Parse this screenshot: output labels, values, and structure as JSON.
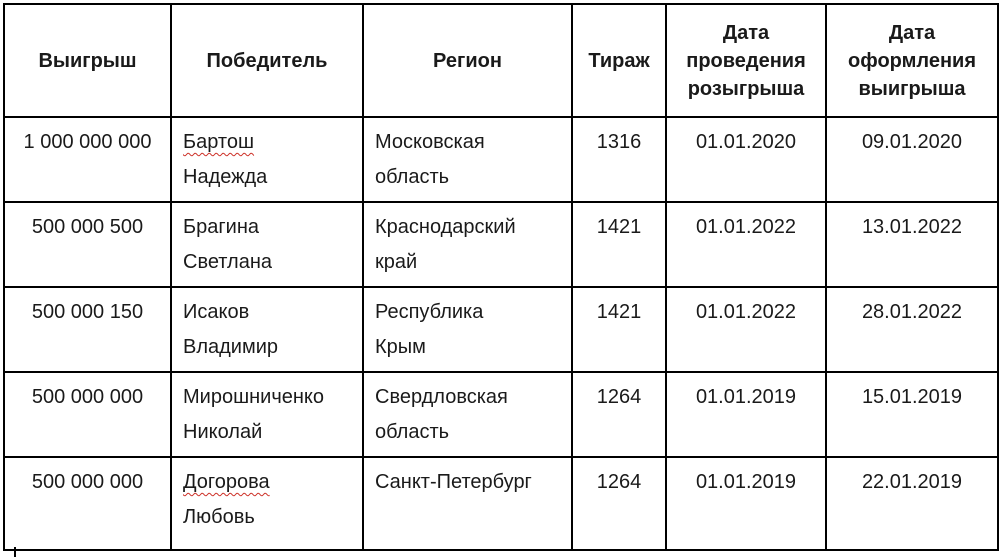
{
  "colors": {
    "border": "#000000",
    "text": "#1a1a1a",
    "spellcheck_underline": "#cc2f26",
    "background": "#ffffff"
  },
  "table": {
    "headers": [
      "Выигрыш",
      "Победитель",
      "Регион",
      "Тираж",
      "Дата проведения розыгрыша",
      "Дата оформления выигрыша"
    ],
    "rows": [
      {
        "prize": "1 000 000 000",
        "winner_line1": "Бартош",
        "winner_line2": "Надежда",
        "region_line1": "Московская",
        "region_line2": "область",
        "edition": "1316",
        "draw_date": "01.01.2020",
        "claim_date": "09.01.2020"
      },
      {
        "prize": "500 000 500",
        "winner_line1": "Брагина",
        "winner_line2": "Светлана",
        "region_line1": "Краснодарский",
        "region_line2": "край",
        "edition": "1421",
        "draw_date": "01.01.2022",
        "claim_date": "13.01.2022"
      },
      {
        "prize": "500 000 150",
        "winner_line1": "Исаков",
        "winner_line2": "Владимир",
        "region_line1": "Республика",
        "region_line2": "Крым",
        "edition": "1421",
        "draw_date": "01.01.2022",
        "claim_date": "28.01.2022"
      },
      {
        "prize": "500 000 000",
        "winner_line1": "Мирошниченко",
        "winner_line2": "Николай",
        "region_line1": "Свердловская",
        "region_line2": "область",
        "edition": "1264",
        "draw_date": "01.01.2019",
        "claim_date": "15.01.2019"
      },
      {
        "prize": "500 000 000",
        "winner_line1": "Догорова",
        "winner_line2": "Любовь",
        "region_line1": "Санкт-Петербург",
        "edition": "1264",
        "draw_date": "01.01.2019",
        "claim_date": "22.01.2019"
      }
    ]
  }
}
